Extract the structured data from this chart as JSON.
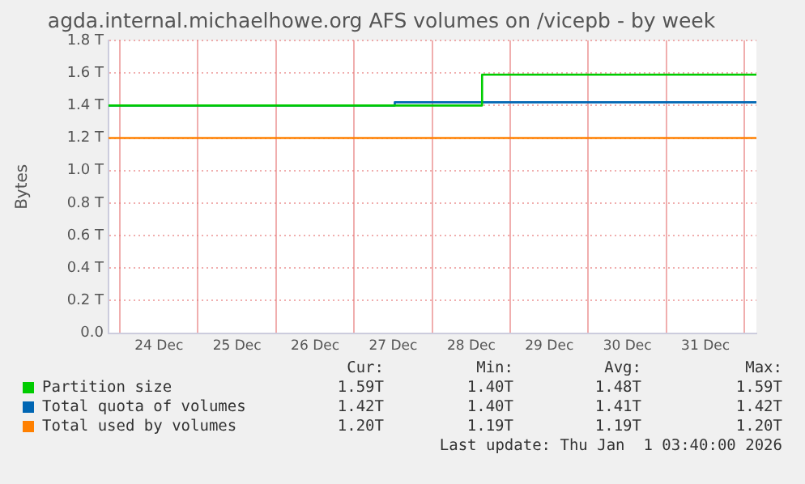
{
  "chart_data": {
    "type": "step",
    "title": "agda.internal.michaelhowe.org AFS volumes on /vicepb - by week",
    "ylabel": "Bytes",
    "xlim": [
      "2025-12-23T20:30",
      "2026-01-01T03:40"
    ],
    "xticks": [
      {
        "value": "2025-12-24T00:00",
        "label": null
      },
      {
        "value": "2025-12-24T12:00",
        "label": "24 Dec"
      },
      {
        "value": "2025-12-25T00:00",
        "label": null
      },
      {
        "value": "2025-12-25T12:00",
        "label": "25 Dec"
      },
      {
        "value": "2025-12-26T00:00",
        "label": null
      },
      {
        "value": "2025-12-26T12:00",
        "label": "26 Dec"
      },
      {
        "value": "2025-12-27T00:00",
        "label": null
      },
      {
        "value": "2025-12-27T12:00",
        "label": "27 Dec"
      },
      {
        "value": "2025-12-28T00:00",
        "label": null
      },
      {
        "value": "2025-12-28T12:00",
        "label": "28 Dec"
      },
      {
        "value": "2025-12-29T00:00",
        "label": null
      },
      {
        "value": "2025-12-29T12:00",
        "label": "29 Dec"
      },
      {
        "value": "2025-12-30T00:00",
        "label": null
      },
      {
        "value": "2025-12-30T12:00",
        "label": "30 Dec"
      },
      {
        "value": "2025-12-31T00:00",
        "label": null
      },
      {
        "value": "2025-12-31T12:00",
        "label": "31 Dec"
      },
      {
        "value": "2026-01-01T00:00",
        "label": null
      }
    ],
    "ylim": [
      0,
      1.8
    ],
    "yticks": [
      {
        "value": 0,
        "label": "0.0"
      },
      {
        "value": 0.2,
        "label": "0.2 T"
      },
      {
        "value": 0.4,
        "label": "0.4 T"
      },
      {
        "value": 0.6,
        "label": "0.6 T"
      },
      {
        "value": 0.8,
        "label": "0.8 T"
      },
      {
        "value": 1,
        "label": "1.0 T"
      },
      {
        "value": 1.2,
        "label": "1.2 T"
      },
      {
        "value": 1.4,
        "label": "1.4 T"
      },
      {
        "value": 1.6,
        "label": "1.6 T"
      },
      {
        "value": 1.8,
        "label": "1.8 T"
      }
    ],
    "grid": true,
    "legend": "bottom",
    "series": [
      {
        "name": "Partition size",
        "color": "#00cc00",
        "x": [
          "2025-12-23T20:30",
          "2025-12-28T15:20",
          "2026-01-01T03:40"
        ],
        "values": [
          1.4,
          1.59,
          1.59
        ]
      },
      {
        "name": "Total quota of volumes",
        "color": "#0066b3",
        "x": [
          "2025-12-23T20:30",
          "2025-12-27T12:30",
          "2026-01-01T03:40"
        ],
        "values": [
          1.4,
          1.42,
          1.42
        ]
      },
      {
        "name": "Total used by volumes",
        "color": "#ff8000",
        "x": [
          "2025-12-23T20:30",
          "2026-01-01T03:40"
        ],
        "values": [
          1.2,
          1.2
        ]
      }
    ],
    "annotations": [
      "Cur:",
      "Min:",
      "Avg:",
      "Max:",
      "1.59T",
      "1.40T",
      "1.48T",
      "1.59T",
      "1.42T",
      "1.40T",
      "1.41T",
      "1.42T",
      "1.20T",
      "1.19T",
      "1.19T",
      "1.20T",
      "Last update: Thu Jan  1 03:40:00 2026"
    ]
  }
}
